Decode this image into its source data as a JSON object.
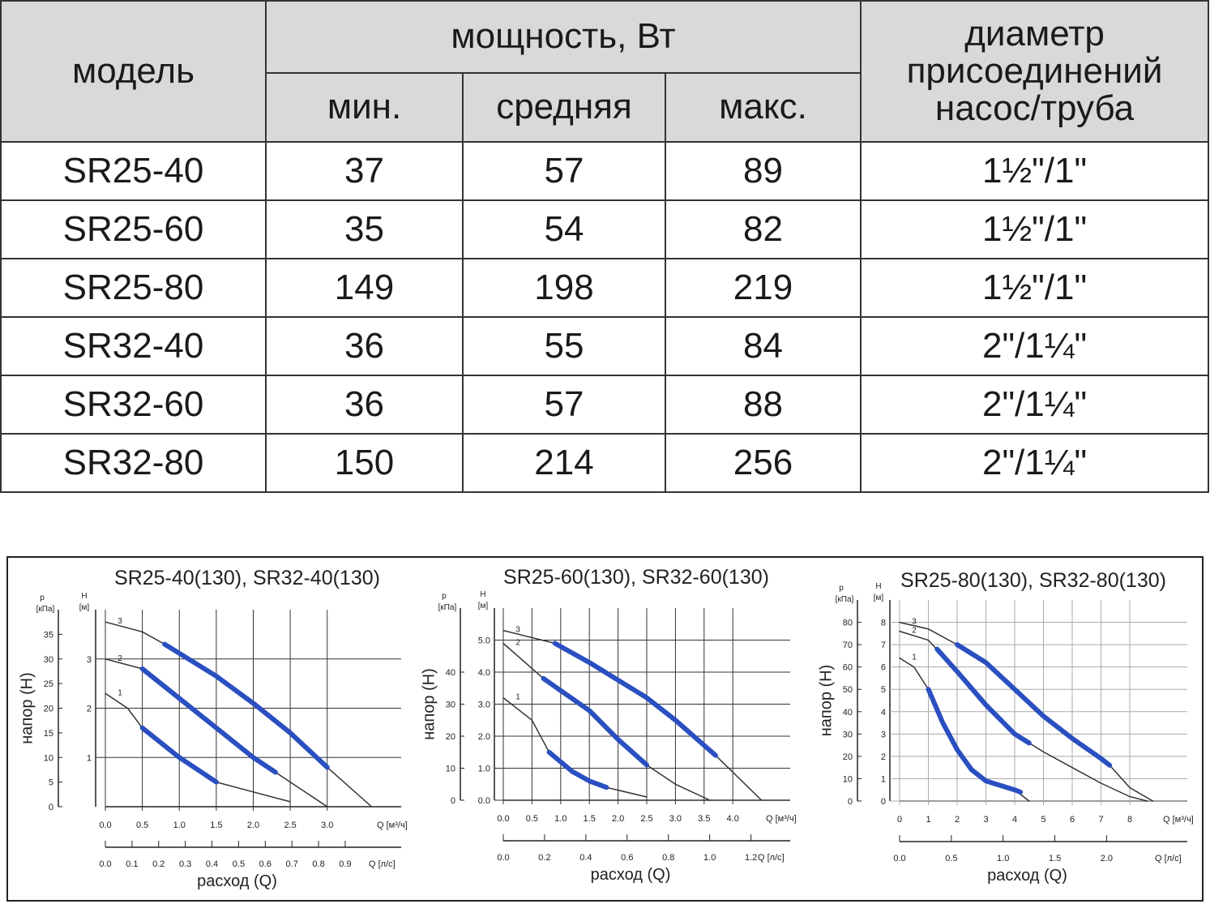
{
  "table": {
    "header": {
      "model": "модель",
      "power": "мощность, Вт",
      "min": "мин.",
      "avg": "средняя",
      "max": "макс.",
      "diameter": [
        "диаметр",
        "присоединений",
        "насос/труба"
      ]
    },
    "rows": [
      [
        "SR25-40",
        37,
        57,
        89,
        "1½\"/1\""
      ],
      [
        "SR25-60",
        35,
        54,
        82,
        "1½\"/1\""
      ],
      [
        "SR25-80",
        149,
        198,
        219,
        "1½\"/1\""
      ],
      [
        "SR32-40",
        36,
        55,
        84,
        "2\"/1¼\""
      ],
      [
        "SR32-60",
        36,
        57,
        88,
        "2\"/1¼\""
      ],
      [
        "SR32-80",
        150,
        214,
        256,
        "2\"/1¼\""
      ]
    ]
  },
  "charts": [
    {
      "type": "line",
      "title": "SR25-40(130), SR32-40(130)",
      "y_label": "напор (H)",
      "x_label": "расход (Q)",
      "p_name": "p",
      "p_unit": "[кПа]",
      "h_name": "H",
      "h_unit": "[м]",
      "q_unit": "Q [м³/ч]",
      "qs_unit": "Q [л/с]",
      "xlim": [
        0,
        4
      ],
      "ylim": [
        0,
        4
      ],
      "plim": [
        0,
        40
      ],
      "qslim": [
        0,
        1.11
      ],
      "pticks": [
        0,
        5,
        10,
        15,
        20,
        25,
        30,
        35
      ],
      "yticks": [
        1,
        2,
        3
      ],
      "xticks": [
        {
          "value": 0,
          "label": "0.0"
        },
        0.5,
        {
          "value": 1,
          "label": "1.0"
        },
        1.5,
        {
          "value": 2,
          "label": "2.0"
        },
        2.5,
        {
          "value": 3,
          "label": "3.0"
        }
      ],
      "qsticks": [
        {
          "value": 0,
          "label": "0.0"
        },
        0.1,
        0.2,
        0.3,
        0.4,
        0.5,
        0.6,
        0.7,
        0.8,
        0.9
      ],
      "series": [
        {
          "name": "1",
          "color": "#333333",
          "x": [
            0,
            0.3,
            0.5,
            1.0,
            1.5,
            2.0,
            2.5
          ],
          "y": [
            2.3,
            2.0,
            1.6,
            1.0,
            0.5,
            0.3,
            0.1
          ]
        },
        {
          "name": "2",
          "color": "#333333",
          "x": [
            0,
            0.5,
            1.0,
            1.5,
            2.0,
            2.3,
            3.0
          ],
          "y": [
            3.0,
            2.8,
            2.2,
            1.6,
            1.0,
            0.7,
            0
          ]
        },
        {
          "name": "3",
          "color": "#333333",
          "x": [
            0,
            0.5,
            0.8,
            1.5,
            2.0,
            2.5,
            3.0,
            3.6
          ],
          "y": [
            3.75,
            3.55,
            3.3,
            2.65,
            2.1,
            1.5,
            0.8,
            0
          ]
        }
      ],
      "duty": {
        "color": "#2a4fc0",
        "series": [
          {
            "x": [
              0.5,
              1.0,
              1.5
            ],
            "y": [
              1.6,
              1.0,
              0.5
            ]
          },
          {
            "x": [
              0.5,
              1.0,
              1.5,
              2.0,
              2.3
            ],
            "y": [
              2.8,
              2.2,
              1.6,
              1.0,
              0.7
            ]
          },
          {
            "x": [
              0.8,
              1.5,
              2.0,
              2.5,
              3.0
            ],
            "y": [
              3.3,
              2.65,
              2.1,
              1.5,
              0.8
            ]
          }
        ]
      }
    },
    {
      "type": "line",
      "title": "SR25-60(130), SR32-60(130)",
      "y_label": "напор (H)",
      "x_label": "расход (Q)",
      "p_name": "p",
      "p_unit": "[кПа]",
      "h_name": "H",
      "h_unit": "[м]",
      "q_unit": "Q [м³/ч]",
      "qs_unit": "Q [л/с]",
      "xlim": [
        0,
        5
      ],
      "ylim": [
        0,
        6
      ],
      "plim": [
        0,
        60
      ],
      "qslim": [
        0,
        1.39
      ],
      "pticks": [
        0,
        10,
        20,
        30,
        40
      ],
      "yticks": [
        {
          "value": 0,
          "label": "0.0"
        },
        {
          "value": 1,
          "label": "1.0"
        },
        {
          "value": 2,
          "label": "2.0"
        },
        {
          "value": 3,
          "label": "3.0"
        },
        {
          "value": 4,
          "label": "4.0"
        },
        {
          "value": 5,
          "label": "5.0"
        }
      ],
      "xticks": [
        {
          "value": 0,
          "label": "0.0"
        },
        0.5,
        {
          "value": 1,
          "label": "1.0"
        },
        1.5,
        {
          "value": 2,
          "label": "2.0"
        },
        2.5,
        {
          "value": 3,
          "label": "3.0"
        },
        3.5,
        {
          "value": 4,
          "label": "4.0"
        }
      ],
      "qsticks": [
        {
          "value": 0,
          "label": "0.0"
        },
        0.2,
        0.4,
        0.6,
        0.8,
        {
          "value": 1,
          "label": "1.0"
        },
        1.2
      ],
      "series": [
        {
          "name": "1",
          "color": "#333333",
          "x": [
            0,
            0.5,
            0.8,
            1.2,
            1.5,
            1.8,
            2.5
          ],
          "y": [
            3.2,
            2.5,
            1.5,
            0.9,
            0.6,
            0.4,
            0.1
          ]
        },
        {
          "name": "2",
          "color": "#333333",
          "x": [
            0,
            0.7,
            1.5,
            2.0,
            2.5,
            3.0,
            3.6
          ],
          "y": [
            4.9,
            3.8,
            2.8,
            1.9,
            1.1,
            0.5,
            0
          ]
        },
        {
          "name": "3",
          "color": "#333333",
          "x": [
            0,
            0.9,
            1.5,
            2.5,
            3.0,
            3.7,
            4.5
          ],
          "y": [
            5.3,
            4.9,
            4.3,
            3.2,
            2.5,
            1.4,
            0
          ]
        }
      ],
      "duty": {
        "color": "#2a4fc0",
        "series": [
          {
            "x": [
              0.8,
              1.2,
              1.5,
              1.8
            ],
            "y": [
              1.5,
              0.9,
              0.6,
              0.4
            ]
          },
          {
            "x": [
              0.7,
              1.5,
              2.0,
              2.5
            ],
            "y": [
              3.8,
              2.8,
              1.9,
              1.1
            ]
          },
          {
            "x": [
              0.9,
              1.5,
              2.5,
              3.0,
              3.7
            ],
            "y": [
              4.9,
              4.3,
              3.2,
              2.5,
              1.4
            ]
          }
        ]
      }
    },
    {
      "type": "line",
      "title": "SR25-80(130), SR32-80(130)",
      "y_label": "напор (H)",
      "x_label": "расход (Q)",
      "p_name": "p",
      "p_unit": "[кПа]",
      "h_name": "H",
      "h_unit": "[м]",
      "q_unit": "Q [м³/ч]",
      "qs_unit": "Q [л/с]",
      "xlim": [
        0,
        10
      ],
      "ylim": [
        0,
        9
      ],
      "plim": [
        0,
        90
      ],
      "qslim": [
        0,
        2.78
      ],
      "pticks": [
        0,
        10,
        20,
        30,
        40,
        50,
        60,
        70,
        80
      ],
      "yticks": [
        0,
        1,
        2,
        3,
        4,
        5,
        6,
        7,
        8
      ],
      "xticks": [
        0,
        1,
        2,
        3,
        4,
        5,
        6,
        7,
        8
      ],
      "qsticks": [
        {
          "value": 0,
          "label": "0.0"
        },
        0.5,
        {
          "value": 1,
          "label": "1.0"
        },
        1.5,
        {
          "value": 2,
          "label": "2.0"
        }
      ],
      "series": [
        {
          "name": "1",
          "color": "#333333",
          "x": [
            0,
            0.5,
            1,
            1.5,
            2,
            2.5,
            3,
            3.5,
            4,
            4.3,
            4.5
          ],
          "y": [
            6.4,
            6.0,
            5.0,
            3.5,
            2.3,
            1.4,
            0.9,
            0.7,
            0.5,
            0.2,
            0
          ]
        },
        {
          "name": "2",
          "color": "#333333",
          "x": [
            0,
            1,
            2,
            3,
            4,
            4.5,
            5,
            6,
            7,
            8,
            8.6
          ],
          "y": [
            7.6,
            7.2,
            5.8,
            4.3,
            3.0,
            2.6,
            2.2,
            1.5,
            0.8,
            0.2,
            0
          ]
        },
        {
          "name": "3",
          "color": "#333333",
          "x": [
            0,
            1,
            2,
            3,
            4,
            5,
            6,
            7,
            7.3,
            8,
            8.8
          ],
          "y": [
            8.0,
            7.7,
            7.0,
            6.2,
            5.0,
            3.8,
            2.8,
            1.9,
            1.6,
            0.6,
            0
          ]
        }
      ],
      "duty": {
        "color": "#2a4fc0",
        "series": [
          {
            "x": [
              1,
              1.5,
              2,
              2.5,
              3,
              3.5,
              4,
              4.2
            ],
            "y": [
              5.0,
              3.5,
              2.3,
              1.4,
              0.9,
              0.7,
              0.5,
              0.4
            ]
          },
          {
            "x": [
              1.3,
              2,
              3,
              4,
              4.5
            ],
            "y": [
              6.8,
              5.8,
              4.3,
              3.0,
              2.6
            ]
          },
          {
            "x": [
              2,
              3,
              4,
              5,
              6,
              7,
              7.3
            ],
            "y": [
              7.0,
              6.2,
              5.0,
              3.8,
              2.8,
              1.9,
              1.6
            ]
          }
        ]
      }
    }
  ]
}
